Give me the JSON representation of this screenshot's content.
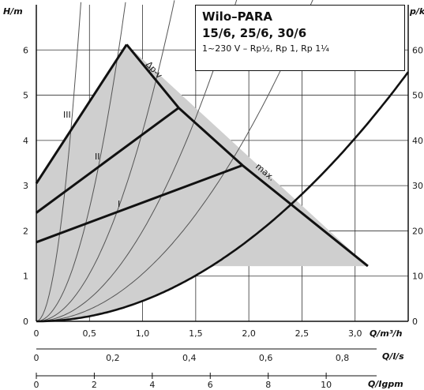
{
  "header": {
    "title": "Wilo–PARA",
    "models": "15/6, 25/6, 30/6",
    "spec": "1~230 V – Rp½, Rp 1, Rp 1¼"
  },
  "chart_data": {
    "type": "line",
    "x_axes": [
      {
        "label": "Q/m³/h",
        "range": [
          0,
          3.5
        ],
        "ticks": [
          "0",
          "0,5",
          "1,0",
          "1,5",
          "2,0",
          "2,5",
          "3,0"
        ]
      },
      {
        "label": "Q/l/s",
        "ticks": [
          "0",
          "0,2",
          "0,4",
          "0,6",
          "0,8"
        ]
      },
      {
        "label": "Q/Igpm",
        "ticks": [
          "0",
          "2",
          "4",
          "6",
          "8",
          "10"
        ]
      }
    ],
    "y_axes": [
      {
        "label": "H/m",
        "range": [
          0,
          7
        ],
        "ticks": [
          "0",
          "1",
          "2",
          "3",
          "4",
          "5",
          "6"
        ]
      },
      {
        "label": "p/kPa",
        "ticks": [
          "0",
          "10",
          "20",
          "30",
          "40",
          "50",
          "60"
        ]
      }
    ],
    "grid": true,
    "annotations": [
      "III",
      "II",
      "I",
      "Δp-v",
      "max."
    ],
    "series": [
      {
        "name": "max.",
        "x": [
          0.0,
          0.85,
          3.12,
          0.0
        ],
        "y": [
          3.05,
          6.12,
          1.22,
          0.0
        ]
      },
      {
        "name": "III",
        "x": [
          0.0,
          0.85
        ],
        "y": [
          3.05,
          6.12
        ]
      },
      {
        "name": "II",
        "x": [
          0.0,
          1.34
        ],
        "y": [
          2.4,
          4.72
        ]
      },
      {
        "name": "I",
        "x": [
          0.0,
          1.94
        ],
        "y": [
          1.75,
          3.45
        ]
      },
      {
        "name": "Δp-v",
        "x": [
          0.85,
          1.34,
          1.94,
          3.12
        ],
        "y": [
          6.12,
          4.72,
          3.45,
          1.22
        ]
      }
    ],
    "system_curves": [
      {
        "k": 40.0
      },
      {
        "k": 10.0
      },
      {
        "k": 4.2
      },
      {
        "k": 2.0
      },
      {
        "k": 1.05
      },
      {
        "k": 0.45
      }
    ]
  }
}
